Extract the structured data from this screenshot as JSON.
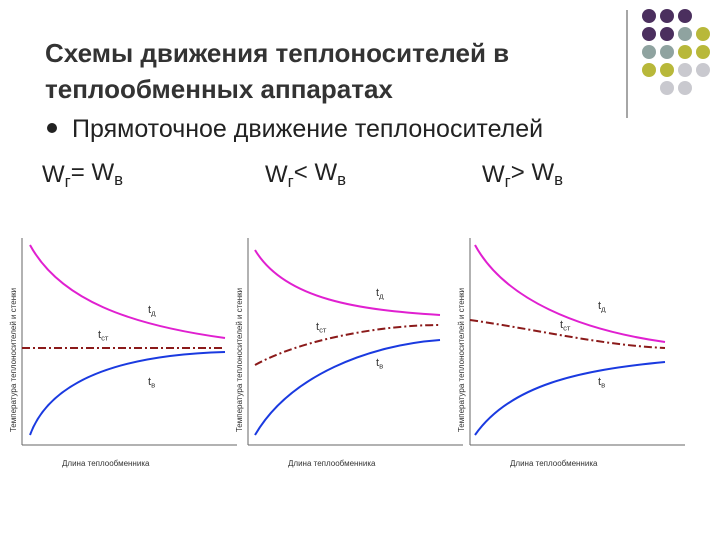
{
  "header": {
    "title_lines": [
      "Схемы движения теплоносителей в",
      "теплообменных аппаратах"
    ]
  },
  "bullet": "Прямоточное движение теплоносителей",
  "cases": [
    {
      "label": [
        "W",
        "г",
        "= W",
        "в"
      ],
      "y_axis": "Температура теплоносителей и стенки",
      "x_axis": "Длина теплообменника",
      "curves": [
        [
          "t",
          "д"
        ],
        [
          "t",
          "ст"
        ],
        [
          "t",
          "в"
        ]
      ]
    },
    {
      "label": [
        "W",
        "г",
        "< W",
        "в"
      ],
      "y_axis": "Температура теплоносителей и стенки",
      "x_axis": "Длина теплообменника",
      "curves": [
        [
          "t",
          "д"
        ],
        [
          "t",
          "ст"
        ],
        [
          "t",
          "в"
        ]
      ]
    },
    {
      "label": [
        "W",
        "г",
        "> W",
        "в"
      ],
      "y_axis": "Температура теплоносителей и стенки",
      "x_axis": "Длина теплообменника",
      "curves": [
        [
          "t",
          "д"
        ],
        [
          "t",
          "ст"
        ],
        [
          "t",
          "в"
        ]
      ]
    }
  ]
}
